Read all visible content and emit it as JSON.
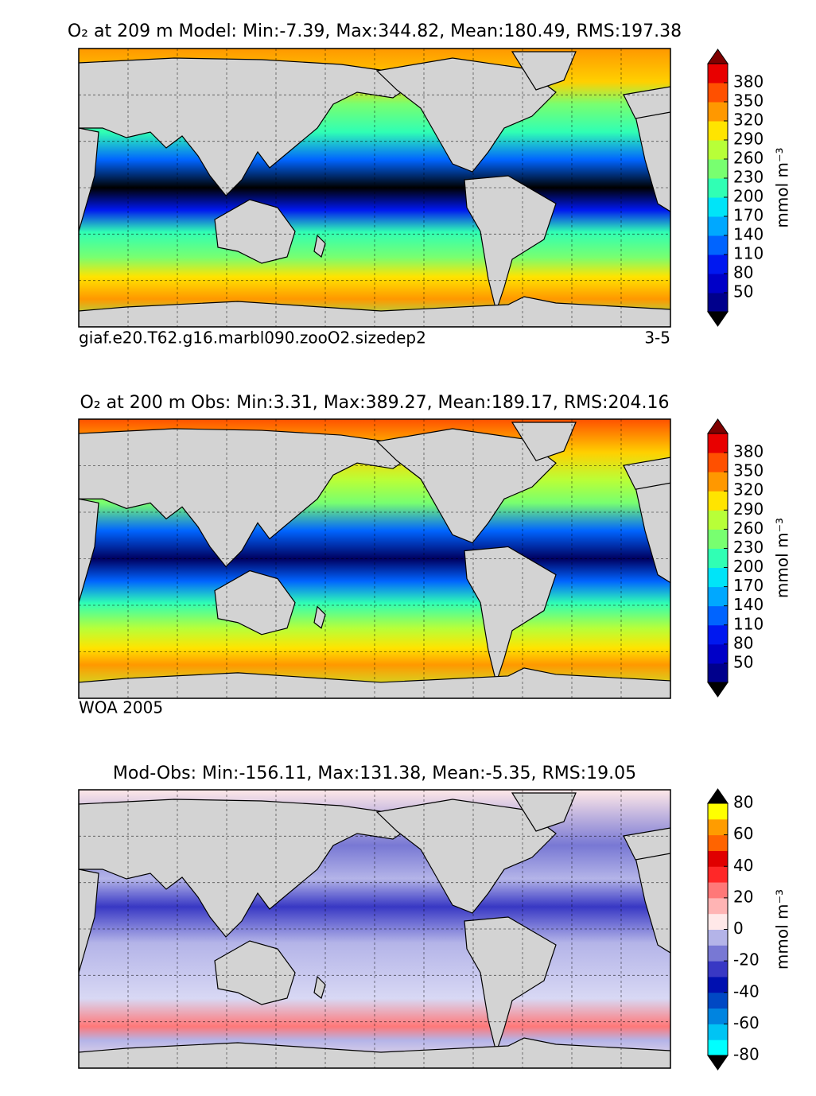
{
  "panels": [
    {
      "title": "O₂  at 209 m Model: Min:-7.39, Max:344.82, Mean:180.49, RMS:197.38",
      "caption_left": "giaf.e20.T62.g16.marbl090.zooO2.sizedep2",
      "caption_right": "3-5",
      "colorbar": {
        "label": "mmol m⁻³",
        "lim": [
          20,
          410
        ],
        "ticks": [
          50,
          80,
          110,
          140,
          170,
          200,
          230,
          260,
          290,
          320,
          350,
          380
        ],
        "colors": [
          "#00008c",
          "#0000c8",
          "#0018f0",
          "#0064ff",
          "#00a8ff",
          "#00e4f8",
          "#30ffb4",
          "#78ff70",
          "#b8ff38",
          "#ffe400",
          "#ff9800",
          "#ff5000",
          "#e80000"
        ],
        "extend_colors": [
          "#000000",
          "#800000"
        ]
      }
    },
    {
      "title": "O₂  at 200 m Obs: Min:3.31, Max:389.27, Mean:189.17, RMS:204.16",
      "caption_left": "WOA 2005",
      "colorbar": {
        "label": "mmol m⁻³",
        "lim": [
          20,
          410
        ],
        "ticks": [
          50,
          80,
          110,
          140,
          170,
          200,
          230,
          260,
          290,
          320,
          350,
          380
        ],
        "colors": [
          "#00008c",
          "#0000c8",
          "#0018f0",
          "#0064ff",
          "#00a8ff",
          "#00e4f8",
          "#30ffb4",
          "#78ff70",
          "#b8ff38",
          "#ffe400",
          "#ff9800",
          "#ff5000",
          "#e80000"
        ],
        "extend_colors": [
          "#000000",
          "#800000"
        ]
      }
    },
    {
      "title": "Mod-Obs: Min:-156.11, Max:131.38, Mean:-5.35, RMS:19.05",
      "colorbar": {
        "label": "mmol m⁻³",
        "lim": [
          -80,
          80
        ],
        "ticks": [
          -80,
          -60,
          -40,
          -20,
          0,
          20,
          40,
          60,
          80
        ],
        "colors": [
          "#00ffff",
          "#00c4f4",
          "#0084e0",
          "#0048c4",
          "#0010b0",
          "#3838c4",
          "#7878d4",
          "#b4b4e8",
          "#ffe8e8",
          "#ffb4b4",
          "#ff7878",
          "#ff2828",
          "#e00000",
          "#ff6400",
          "#ff9c00",
          "#ffff00"
        ],
        "extend_colors": [
          "#000000",
          "#000000"
        ]
      }
    }
  ]
}
